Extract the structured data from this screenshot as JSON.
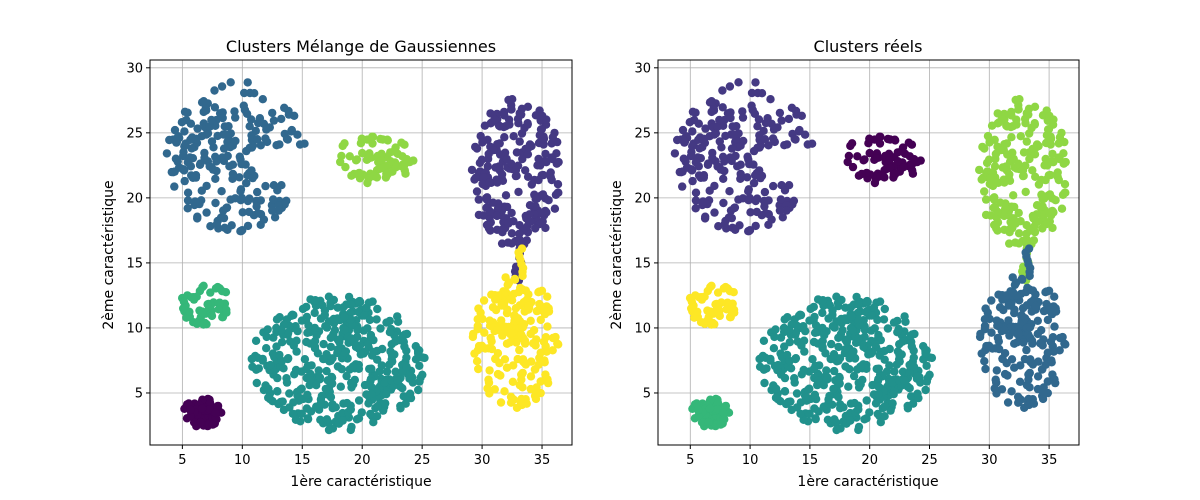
{
  "chart_data": [
    {
      "type": "scatter",
      "title": "Clusters Mélange de Gaussiennes",
      "xlabel": "1ère caractéristique",
      "ylabel": "2ème caractéristique",
      "xlim": [
        2.3,
        37.5
      ],
      "ylim": [
        1.0,
        30.6
      ],
      "xticks": [
        5,
        10,
        15,
        20,
        25,
        30,
        35
      ],
      "yticks": [
        5,
        10,
        15,
        20,
        25,
        30
      ],
      "grid": true,
      "series": [
        {
          "color": "#440154",
          "shape": "ellipse",
          "center": [
            6.7,
            3.5
          ],
          "radius": [
            1.6,
            1.2
          ],
          "count": 60
        },
        {
          "color": "#31688e",
          "shape": "c-cluster",
          "center": [
            9.5,
            23.2
          ],
          "radius": [
            5.8,
            5.8
          ],
          "count": 220
        },
        {
          "color": "#8fd744",
          "shape": "ellipse",
          "center": [
            21.0,
            23.0
          ],
          "radius": [
            3.3,
            1.9
          ],
          "count": 70
        },
        {
          "color": "#443983",
          "shape": "blob-tail",
          "center": [
            32.8,
            22.0
          ],
          "radius": [
            3.8,
            5.8
          ],
          "count": 220
        },
        {
          "color": "#35b779",
          "shape": "ellipse",
          "center": [
            7.0,
            11.8
          ],
          "radius": [
            2.2,
            1.6
          ],
          "count": 55
        },
        {
          "color": "#21918c",
          "shape": "ellipse",
          "center": [
            18.0,
            7.3
          ],
          "radius": [
            7.3,
            5.2
          ],
          "count": 420
        },
        {
          "color": "#fde725",
          "shape": "blob-top",
          "center": [
            32.8,
            9.0
          ],
          "radius": [
            3.6,
            5.2
          ],
          "count": 200
        }
      ]
    },
    {
      "type": "scatter",
      "title": "Clusters réels",
      "xlabel": "1ère caractéristique",
      "ylabel": "2ème caractéristique",
      "xlim": [
        2.3,
        37.5
      ],
      "ylim": [
        1.0,
        30.6
      ],
      "xticks": [
        5,
        10,
        15,
        20,
        25,
        30,
        35
      ],
      "yticks": [
        5,
        10,
        15,
        20,
        25,
        30
      ],
      "grid": true,
      "series": [
        {
          "color": "#35b779",
          "shape": "ellipse",
          "center": [
            6.7,
            3.5
          ],
          "radius": [
            1.6,
            1.2
          ],
          "count": 60
        },
        {
          "color": "#443983",
          "shape": "c-cluster",
          "center": [
            9.5,
            23.2
          ],
          "radius": [
            5.8,
            5.8
          ],
          "count": 220
        },
        {
          "color": "#440154",
          "shape": "ellipse",
          "center": [
            21.0,
            23.0
          ],
          "radius": [
            3.3,
            1.9
          ],
          "count": 70
        },
        {
          "color": "#8fd744",
          "shape": "blob-tail",
          "center": [
            32.8,
            22.0
          ],
          "radius": [
            3.8,
            5.8
          ],
          "count": 220
        },
        {
          "color": "#fde725",
          "shape": "ellipse",
          "center": [
            7.0,
            11.8
          ],
          "radius": [
            2.2,
            1.6
          ],
          "count": 55
        },
        {
          "color": "#21918c",
          "shape": "ellipse",
          "center": [
            18.0,
            7.3
          ],
          "radius": [
            7.3,
            5.2
          ],
          "count": 420
        },
        {
          "color": "#31688e",
          "shape": "blob-top",
          "center": [
            32.8,
            9.0
          ],
          "radius": [
            3.6,
            5.2
          ],
          "count": 200
        }
      ]
    }
  ]
}
